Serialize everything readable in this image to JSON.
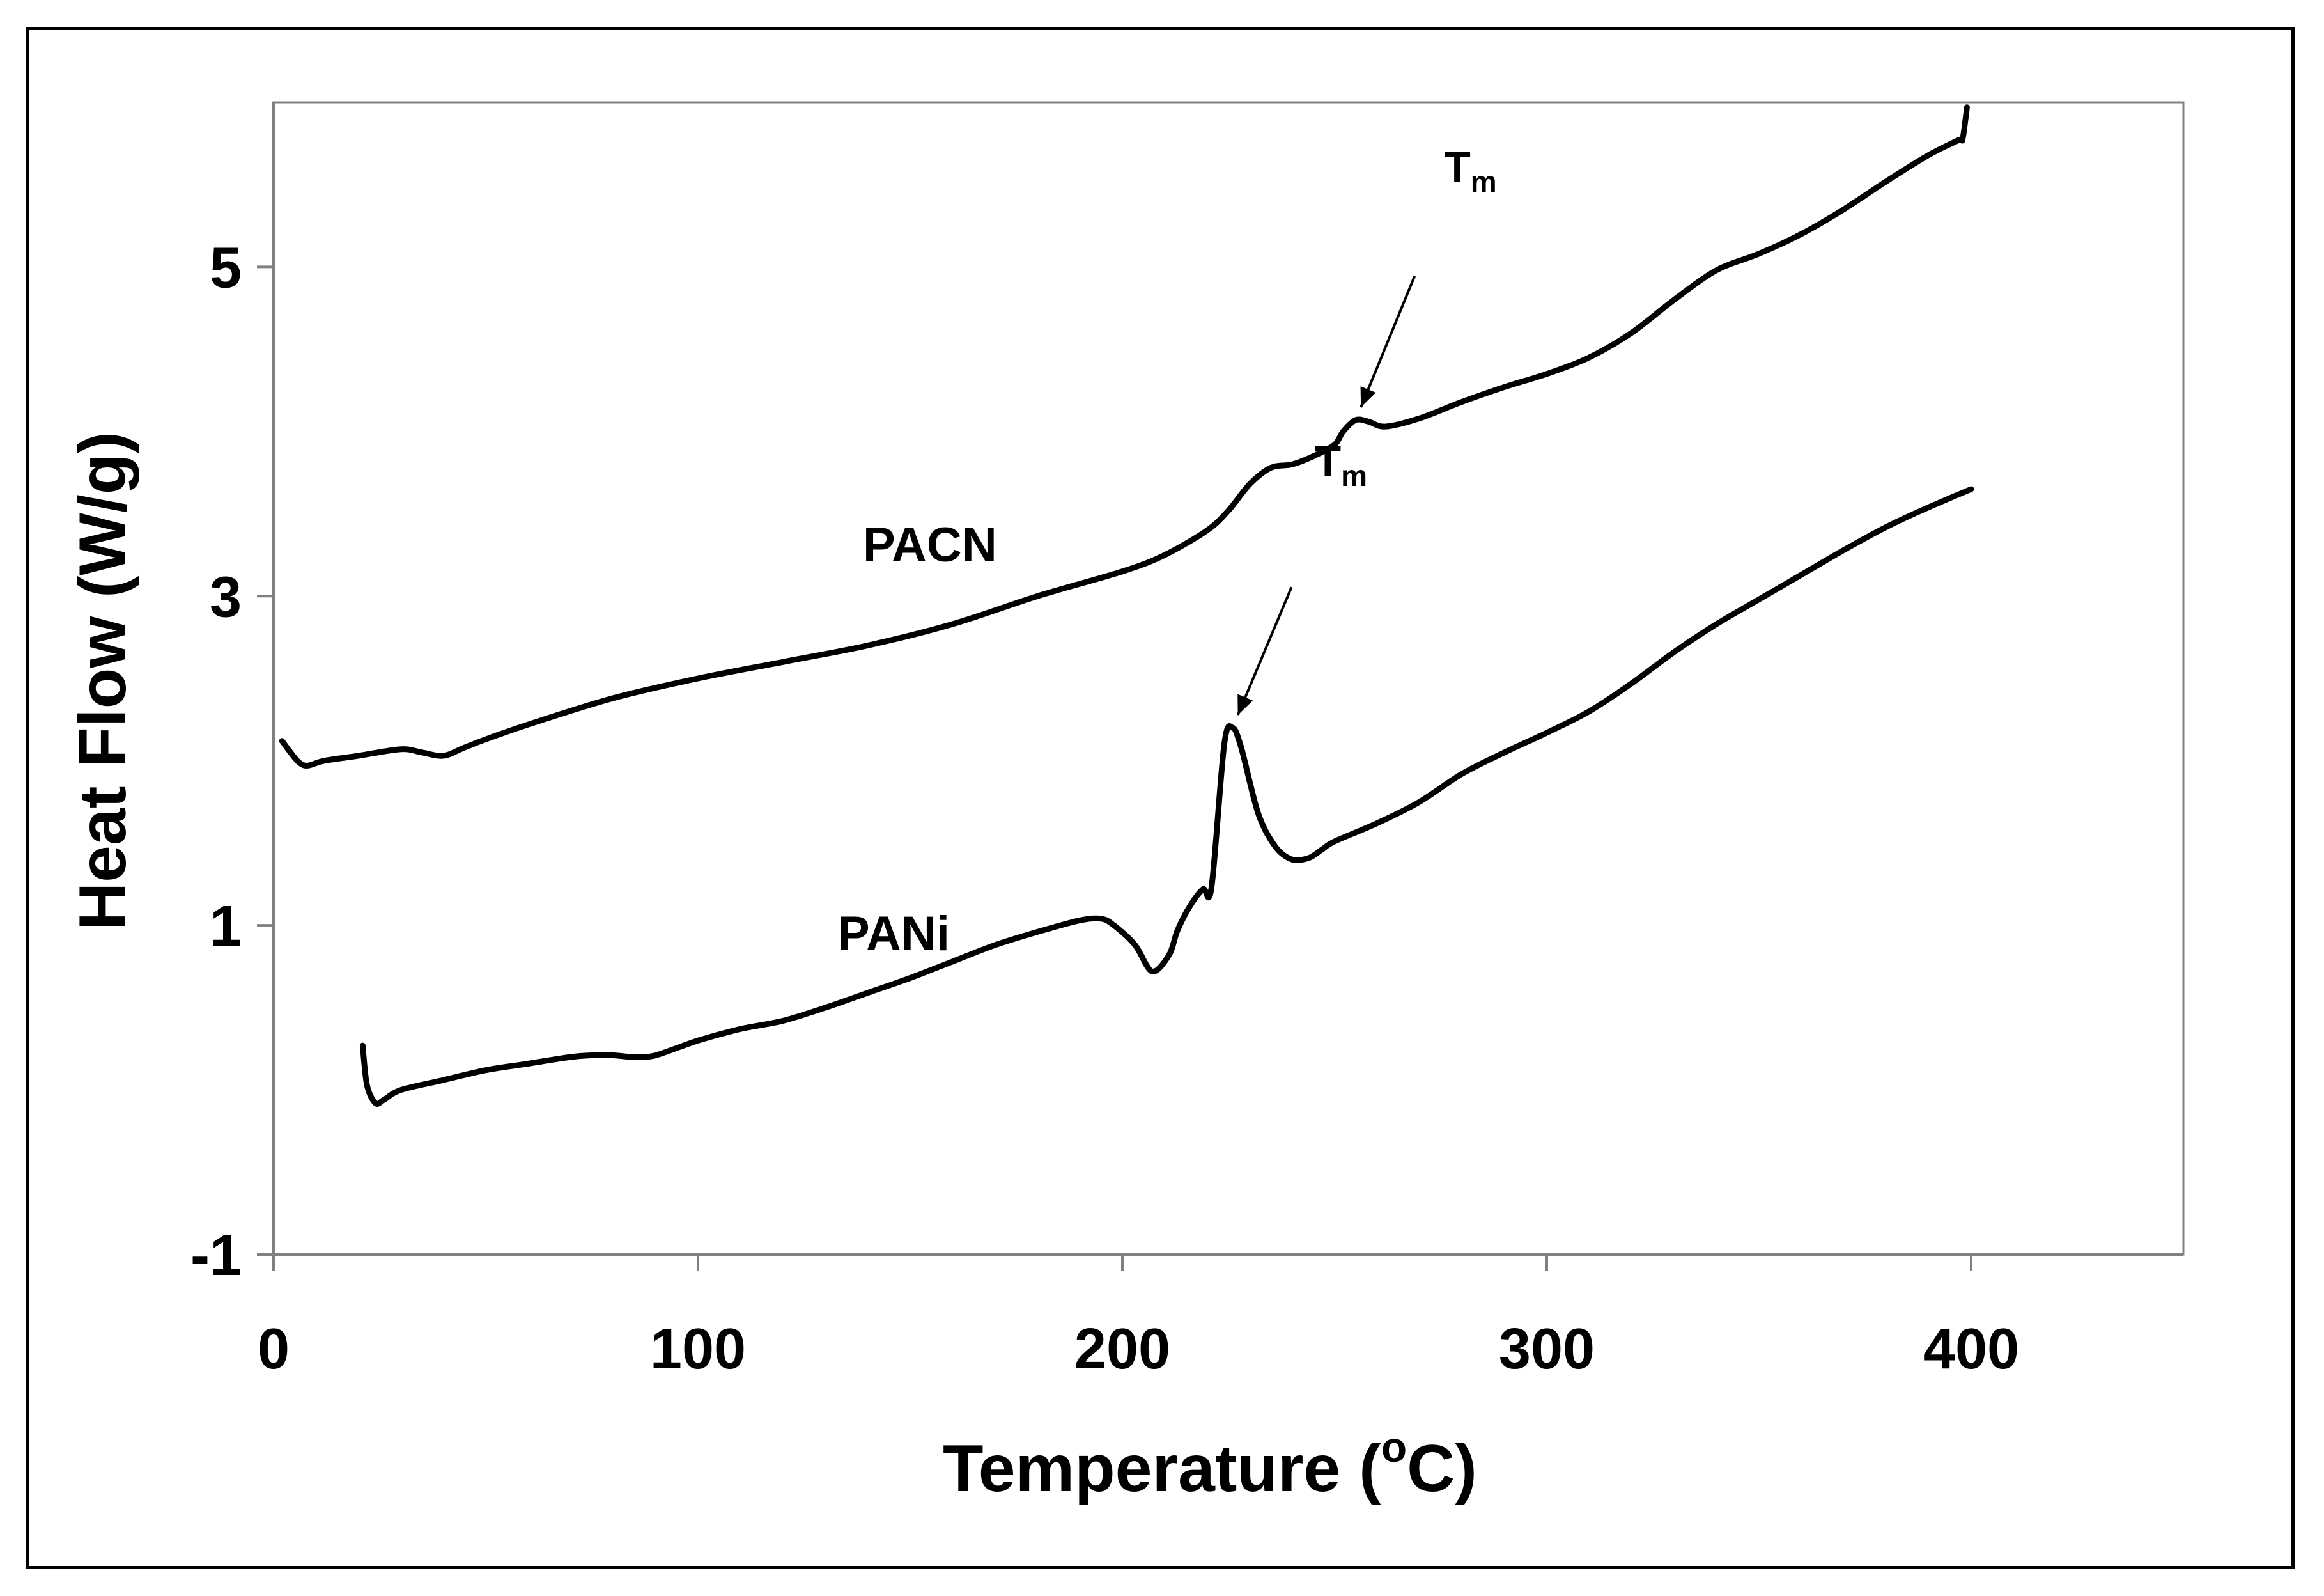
{
  "chart_data": {
    "type": "line",
    "title": "",
    "xlabel": "Temperature (°C)",
    "xlabel_main": "Temperature (",
    "xlabel_sup": "o",
    "xlabel_end": "C)",
    "ylabel": "Heat Flow (W/g)",
    "xlim": [
      0,
      450
    ],
    "ylim": [
      -1,
      6
    ],
    "x_ticks": [
      0,
      100,
      200,
      300,
      400
    ],
    "x_tick_labels": [
      "0",
      "100",
      "200",
      "300",
      "400"
    ],
    "y_ticks": [
      -1,
      1,
      3,
      5
    ],
    "y_tick_labels": [
      "-1",
      "1",
      "3",
      "5"
    ],
    "grid": false,
    "colors": {
      "line": "#000000",
      "axis": "#808080"
    },
    "series": [
      {
        "name": "PACN",
        "label": "PACN",
        "x": [
          2,
          4,
          6,
          8,
          12,
          20,
          30,
          35,
          40,
          45,
          50,
          60,
          80,
          100,
          120,
          140,
          160,
          180,
          200,
          210,
          220,
          225,
          230,
          235,
          240,
          245,
          250,
          252,
          255,
          258,
          262,
          270,
          280,
          290,
          300,
          310,
          320,
          330,
          340,
          350,
          360,
          370,
          380,
          390,
          397,
          398,
          399
        ],
        "y": [
          2.12,
          2.05,
          1.99,
          1.97,
          2.0,
          2.03,
          2.07,
          2.05,
          2.03,
          2.08,
          2.13,
          2.22,
          2.38,
          2.5,
          2.6,
          2.7,
          2.83,
          3.0,
          3.15,
          3.25,
          3.4,
          3.52,
          3.68,
          3.78,
          3.8,
          3.85,
          3.92,
          4.0,
          4.07,
          4.06,
          4.03,
          4.08,
          4.18,
          4.27,
          4.35,
          4.45,
          4.6,
          4.8,
          4.98,
          5.08,
          5.2,
          5.35,
          5.52,
          5.68,
          5.77,
          5.78,
          5.97
        ]
      },
      {
        "name": "PANi",
        "label": "PANi",
        "x": [
          21,
          22,
          24,
          26,
          30,
          40,
          50,
          60,
          70,
          75,
          80,
          85,
          90,
          100,
          110,
          120,
          130,
          140,
          150,
          160,
          170,
          180,
          190,
          195,
          198,
          203,
          207,
          211,
          213,
          216,
          219,
          221,
          224,
          226,
          228,
          232,
          236,
          240,
          244,
          247,
          250,
          260,
          270,
          280,
          290,
          300,
          310,
          320,
          330,
          340,
          350,
          360,
          370,
          380,
          390,
          400
        ],
        "y": [
          0.27,
          0.03,
          -0.08,
          -0.06,
          0.0,
          0.06,
          0.12,
          0.16,
          0.2,
          0.21,
          0.21,
          0.2,
          0.21,
          0.3,
          0.37,
          0.42,
          0.5,
          0.59,
          0.68,
          0.78,
          0.88,
          0.96,
          1.03,
          1.04,
          1.0,
          0.88,
          0.72,
          0.82,
          0.97,
          1.12,
          1.22,
          1.23,
          2.1,
          2.2,
          2.08,
          1.68,
          1.48,
          1.4,
          1.41,
          1.46,
          1.51,
          1.62,
          1.75,
          1.92,
          2.05,
          2.17,
          2.3,
          2.47,
          2.66,
          2.83,
          2.98,
          3.13,
          3.28,
          3.42,
          3.54,
          3.65
        ]
      }
    ],
    "annotations": [
      {
        "text": "T",
        "sub": "m",
        "series": "PACN",
        "at_x": 255,
        "at_y": 4.07
      },
      {
        "text": "T",
        "sub": "m",
        "series": "PANi",
        "at_x": 226,
        "at_y": 2.2
      }
    ]
  }
}
